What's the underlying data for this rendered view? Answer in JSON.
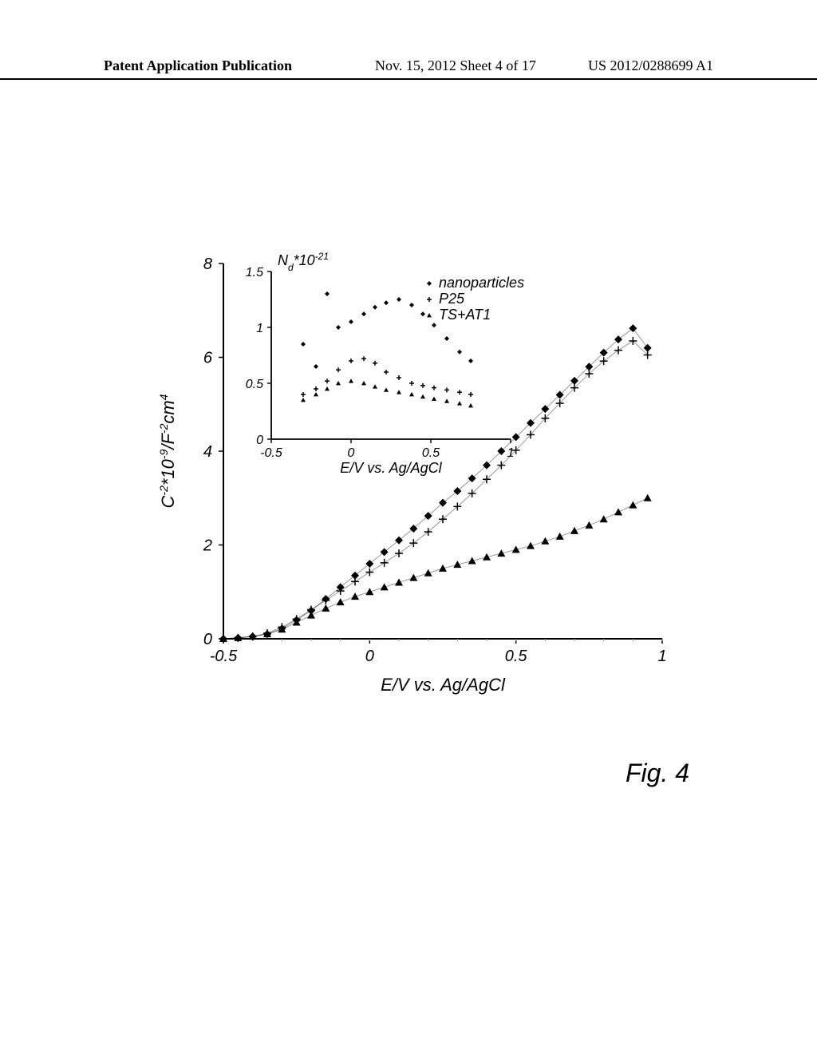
{
  "header": {
    "left": "Patent Application Publication",
    "mid": "Nov. 15, 2012  Sheet 4 of 17",
    "right": "US 2012/0288699 A1"
  },
  "figure_label": "Fig. 4",
  "main_chart": {
    "type": "scatter-line",
    "xlabel": "E/V vs. Ag/AgCl",
    "ylabel": "C⁻²*10⁻⁹/F⁻²cm⁴",
    "xlim": [
      -0.5,
      1.0
    ],
    "ylim": [
      0,
      8
    ],
    "xticks": [
      -0.5,
      0,
      0.5,
      1
    ],
    "yticks": [
      0,
      2,
      4,
      6,
      8
    ],
    "label_fontsize": 22,
    "tick_fontsize": 20,
    "font_style": "italic",
    "background_color": "#ffffff",
    "axis_color": "#000000",
    "tick_color": "#a0a0a0",
    "marker_size": 5,
    "line_width": 1,
    "series": [
      {
        "name": "nanoparticles",
        "marker": "diamond",
        "color": "#000000",
        "x": [
          -0.5,
          -0.45,
          -0.4,
          -0.35,
          -0.3,
          -0.25,
          -0.2,
          -0.15,
          -0.1,
          -0.05,
          0.0,
          0.05,
          0.1,
          0.15,
          0.2,
          0.25,
          0.3,
          0.35,
          0.4,
          0.45,
          0.5,
          0.55,
          0.6,
          0.65,
          0.7,
          0.75,
          0.8,
          0.85,
          0.9,
          0.95
        ],
        "y": [
          0.0,
          0.02,
          0.05,
          0.1,
          0.22,
          0.4,
          0.6,
          0.85,
          1.1,
          1.35,
          1.6,
          1.85,
          2.1,
          2.35,
          2.62,
          2.9,
          3.15,
          3.42,
          3.7,
          4.0,
          4.3,
          4.6,
          4.9,
          5.2,
          5.5,
          5.8,
          6.1,
          6.38,
          6.62,
          6.2
        ]
      },
      {
        "name": "P25",
        "marker": "cross",
        "color": "#000000",
        "x": [
          -0.5,
          -0.45,
          -0.4,
          -0.35,
          -0.3,
          -0.25,
          -0.2,
          -0.15,
          -0.1,
          -0.05,
          0.0,
          0.05,
          0.1,
          0.15,
          0.2,
          0.25,
          0.3,
          0.35,
          0.4,
          0.45,
          0.5,
          0.55,
          0.6,
          0.65,
          0.7,
          0.75,
          0.8,
          0.85,
          0.9,
          0.95
        ],
        "y": [
          0.0,
          0.02,
          0.05,
          0.12,
          0.25,
          0.42,
          0.62,
          0.82,
          1.02,
          1.22,
          1.42,
          1.62,
          1.82,
          2.04,
          2.28,
          2.55,
          2.82,
          3.1,
          3.4,
          3.7,
          4.02,
          4.35,
          4.7,
          5.02,
          5.35,
          5.65,
          5.92,
          6.15,
          6.35,
          6.05
        ]
      },
      {
        "name": "TS+AT1",
        "marker": "triangle",
        "color": "#000000",
        "x": [
          -0.5,
          -0.45,
          -0.4,
          -0.35,
          -0.3,
          -0.25,
          -0.2,
          -0.15,
          -0.1,
          -0.05,
          0.0,
          0.05,
          0.1,
          0.15,
          0.2,
          0.25,
          0.3,
          0.35,
          0.4,
          0.45,
          0.5,
          0.55,
          0.6,
          0.65,
          0.7,
          0.75,
          0.8,
          0.85,
          0.9,
          0.95
        ],
        "y": [
          0.0,
          0.02,
          0.05,
          0.1,
          0.2,
          0.35,
          0.5,
          0.65,
          0.78,
          0.9,
          1.0,
          1.1,
          1.2,
          1.3,
          1.4,
          1.5,
          1.58,
          1.66,
          1.74,
          1.82,
          1.9,
          1.98,
          2.08,
          2.18,
          2.3,
          2.42,
          2.55,
          2.7,
          2.85,
          3.0
        ]
      }
    ]
  },
  "inset_chart": {
    "type": "scatter",
    "xlabel": "E/V vs. Ag/AgCl",
    "ylabel": "Nd*10⁻²¹",
    "xlim": [
      -0.5,
      1.0
    ],
    "ylim": [
      0,
      1.5
    ],
    "xticks": [
      -0.5,
      0,
      0.5,
      1
    ],
    "yticks": [
      0,
      0.5,
      1.0,
      1.5
    ],
    "label_fontsize": 18,
    "tick_fontsize": 16,
    "font_style": "italic",
    "legend_items": [
      "nanoparticles",
      "P25",
      "TS+AT1"
    ],
    "legend_markers": [
      "diamond",
      "cross",
      "triangle"
    ],
    "series": [
      {
        "name": "nanoparticles",
        "marker": "diamond",
        "color": "#000000",
        "x": [
          -0.3,
          -0.22,
          -0.15,
          -0.08,
          0.0,
          0.08,
          0.15,
          0.22,
          0.3,
          0.38,
          0.45,
          0.52,
          0.6,
          0.68,
          0.75
        ],
        "y": [
          0.85,
          0.65,
          1.3,
          1.0,
          1.05,
          1.12,
          1.18,
          1.22,
          1.25,
          1.2,
          1.12,
          1.02,
          0.9,
          0.78,
          0.7
        ]
      },
      {
        "name": "P25",
        "marker": "cross",
        "color": "#000000",
        "x": [
          -0.3,
          -0.22,
          -0.15,
          -0.08,
          0.0,
          0.08,
          0.15,
          0.22,
          0.3,
          0.38,
          0.45,
          0.52,
          0.6,
          0.68,
          0.75
        ],
        "y": [
          0.4,
          0.45,
          0.52,
          0.62,
          0.7,
          0.72,
          0.68,
          0.6,
          0.55,
          0.5,
          0.48,
          0.46,
          0.44,
          0.42,
          0.4
        ]
      },
      {
        "name": "TS+AT1",
        "marker": "triangle",
        "color": "#000000",
        "x": [
          -0.3,
          -0.22,
          -0.15,
          -0.08,
          0.0,
          0.08,
          0.15,
          0.22,
          0.3,
          0.38,
          0.45,
          0.52,
          0.6,
          0.68,
          0.75
        ],
        "y": [
          0.35,
          0.4,
          0.45,
          0.5,
          0.52,
          0.5,
          0.47,
          0.44,
          0.42,
          0.4,
          0.38,
          0.36,
          0.34,
          0.32,
          0.3
        ]
      }
    ]
  }
}
